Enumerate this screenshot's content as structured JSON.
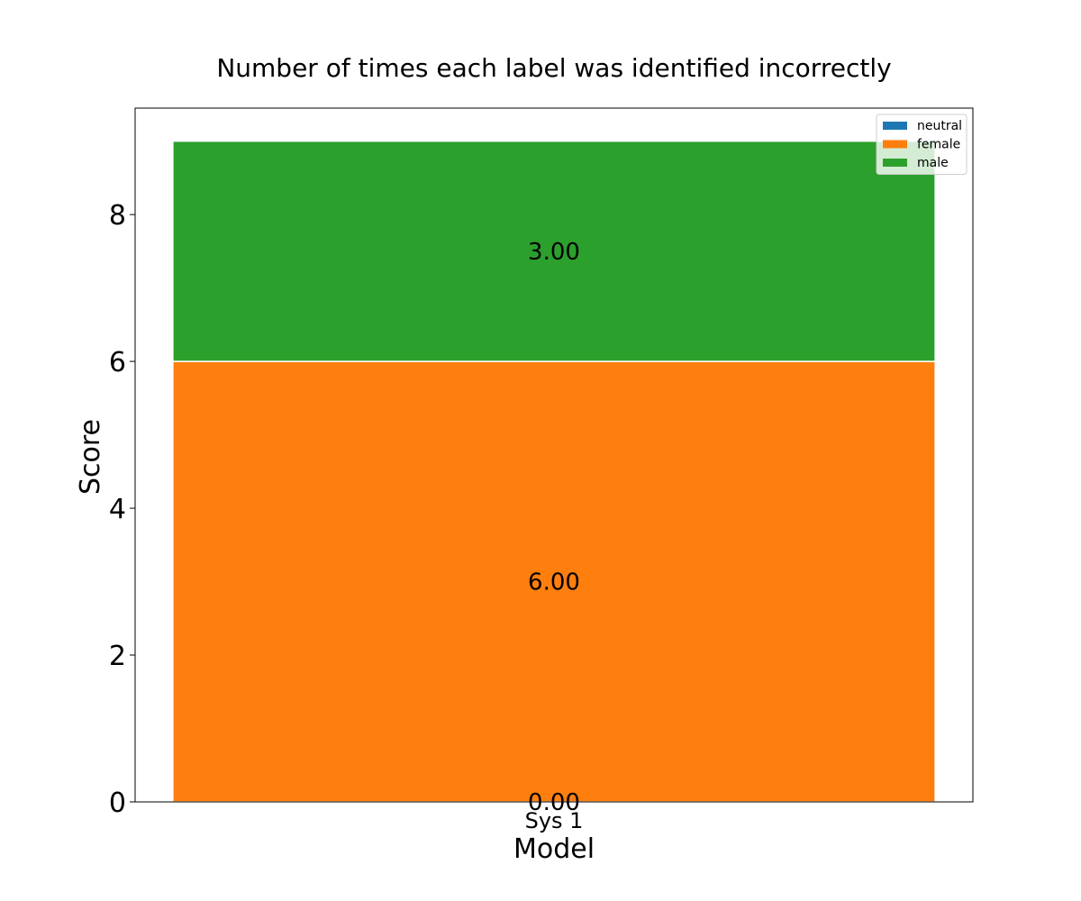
{
  "chart_data": {
    "type": "bar",
    "stacked": true,
    "title": "Number of times each label was identified incorrectly",
    "xlabel": "Model",
    "ylabel": "Score",
    "categories": [
      "Sys 1"
    ],
    "series": [
      {
        "name": "neutral",
        "values": [
          0
        ],
        "color": "#1f77b4",
        "label": "0.00"
      },
      {
        "name": "female",
        "values": [
          6
        ],
        "color": "#ff7f0e",
        "label": "6.00"
      },
      {
        "name": "male",
        "values": [
          3
        ],
        "color": "#2ca02c",
        "label": "3.00"
      }
    ],
    "ylim": [
      0,
      9.45
    ],
    "yticks": [
      0,
      2,
      4,
      6,
      8
    ],
    "grid": false,
    "legend_position": "top-right"
  }
}
